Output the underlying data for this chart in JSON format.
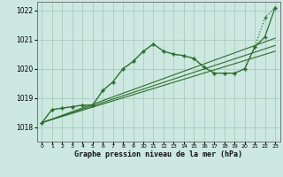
{
  "title": "Graphe pression niveau de la mer (hPa)",
  "bg_color": "#cce8e0",
  "grid_color": "#aaccbb",
  "line_color": "#2d6e2d",
  "ylim": [
    1017.5,
    1022.3
  ],
  "xlim": [
    -0.5,
    23.5
  ],
  "yticks": [
    1018,
    1019,
    1020,
    1021,
    1022
  ],
  "xtick_labels": [
    "0",
    "1",
    "2",
    "3",
    "4",
    "5",
    "6",
    "7",
    "8",
    "9",
    "10",
    "11",
    "12",
    "13",
    "14",
    "15",
    "16",
    "17",
    "18",
    "19",
    "20",
    "21",
    "22",
    "23"
  ],
  "series_jagged": {
    "x": [
      0,
      1,
      2,
      3,
      4,
      5,
      6,
      7,
      8,
      9,
      10,
      11,
      12,
      13,
      14,
      15,
      16,
      17,
      18,
      19,
      20,
      21,
      22,
      23
    ],
    "y": [
      1018.15,
      1018.6,
      1018.65,
      1018.7,
      1018.75,
      1018.75,
      1019.25,
      1019.55,
      1020.0,
      1020.25,
      1020.6,
      1020.85,
      1020.6,
      1020.5,
      1020.45,
      1020.35,
      1020.05,
      1019.85,
      1019.85,
      1019.85,
      1020.0,
      1020.75,
      1021.75,
      1022.1
    ]
  },
  "series_sparse": {
    "x": [
      0,
      1,
      2,
      3,
      4,
      5,
      6,
      7,
      8,
      9,
      10,
      11,
      12,
      13,
      14,
      15,
      16,
      17,
      18,
      19,
      20,
      21,
      22,
      23
    ],
    "y": [
      1018.15,
      1018.6,
      1018.65,
      1018.7,
      1018.75,
      1018.75,
      1019.25,
      1019.55,
      1020.0,
      1020.25,
      1020.6,
      1020.85,
      1020.6,
      1020.5,
      1020.45,
      1020.35,
      1020.05,
      1019.85,
      1019.85,
      1019.85,
      1020.0,
      1020.75,
      1021.1,
      1022.1
    ]
  },
  "series_trend1": {
    "x": [
      0,
      23
    ],
    "y": [
      1018.15,
      1020.6
    ]
  },
  "series_trend2": {
    "x": [
      0,
      23
    ],
    "y": [
      1018.15,
      1020.8
    ]
  },
  "series_trend3": {
    "x": [
      0,
      23
    ],
    "y": [
      1018.15,
      1021.05
    ]
  }
}
